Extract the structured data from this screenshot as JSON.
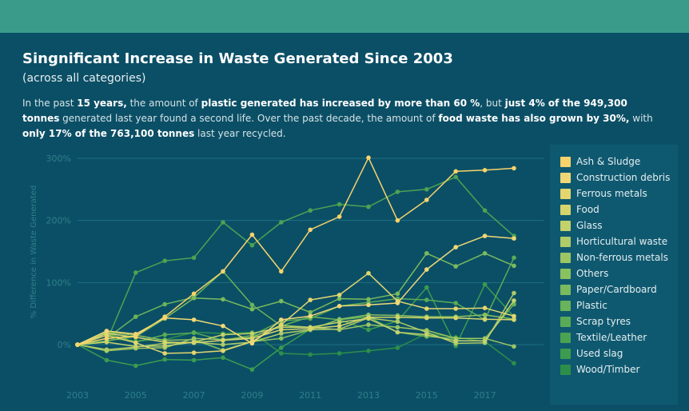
{
  "header": {
    "title": "Singnificant Increase in Waste Generated Since 2003",
    "subtitle": "(across all categories)"
  },
  "description": {
    "l1a": "In the past ",
    "l1b": "15 years,",
    "l1c": " the amount of ",
    "l1d": "plastic generated has increased by more than 60 %",
    "l1e": ", but ",
    "l1f": "just 4% of the 949,300 tonnes",
    "l2a": " generated last year found a second life. Over the past decade, the amount of ",
    "l2b": "food waste has also grown by 30%,",
    "l2c": " with ",
    "l2d": "only 17% of the 763,100 tonnes",
    "l2e": " last year recycled."
  },
  "chart_data": {
    "type": "line",
    "title": "Singnificant Increase in Waste Generated Since 2003",
    "ylabel": "% Difference in Waste Generated",
    "xlabel": "",
    "x": [
      2003,
      2004,
      2005,
      2006,
      2007,
      2008,
      2009,
      2010,
      2011,
      2012,
      2013,
      2014,
      2015,
      2016,
      2017,
      2018
    ],
    "xticks": [
      "2003",
      "2005",
      "2007",
      "2009",
      "2011",
      "2013",
      "2015",
      "2017"
    ],
    "yticks": [
      "300%",
      "200%",
      "100%",
      "0%"
    ],
    "ylim": [
      -50,
      300
    ],
    "grid": true,
    "legend_position": "right",
    "series": [
      {
        "name": "Ash & Sludge",
        "color": "#f6d36b",
        "values": [
          0,
          10,
          14,
          45,
          82,
          118,
          177,
          118,
          185,
          206,
          301,
          200,
          233,
          279,
          281,
          284
        ]
      },
      {
        "name": "Construction debris",
        "color": "#f1d877",
        "values": [
          0,
          22,
          17,
          43,
          40,
          30,
          2,
          40,
          46,
          62,
          64,
          67,
          121,
          157,
          175,
          171
        ]
      },
      {
        "name": "Ferrous metals",
        "color": "#e3d66e",
        "values": [
          0,
          15,
          3,
          -14,
          -13,
          -10,
          5,
          32,
          72,
          80,
          115,
          70,
          58,
          58,
          59,
          46
        ]
      },
      {
        "name": "Food",
        "color": "#d6d56c",
        "values": [
          0,
          18,
          12,
          4,
          3,
          7,
          10,
          24,
          26,
          30,
          44,
          44,
          43,
          43,
          41,
          40
        ]
      },
      {
        "name": "Glass",
        "color": "#c3d26b",
        "values": [
          0,
          4,
          -3,
          -2,
          4,
          16,
          18,
          28,
          28,
          36,
          42,
          20,
          16,
          6,
          6,
          71
        ]
      },
      {
        "name": "Horticultural waste",
        "color": "#aecb67",
        "values": [
          0,
          -8,
          -4,
          2,
          4,
          0,
          4,
          18,
          24,
          25,
          43,
          37,
          20,
          2,
          3,
          83
        ]
      },
      {
        "name": "Non-ferrous metals",
        "color": "#9cc563",
        "values": [
          0,
          -10,
          -6,
          -5,
          10,
          8,
          12,
          31,
          28,
          24,
          32,
          28,
          23,
          10,
          10,
          -3
        ]
      },
      {
        "name": "Others",
        "color": "#8ac160",
        "values": [
          0,
          20,
          15,
          7,
          8,
          -9,
          5,
          10,
          24,
          41,
          48,
          47,
          45,
          45,
          48,
          41
        ]
      },
      {
        "name": "Paper/Cardboard",
        "color": "#79bb5d",
        "values": [
          0,
          6,
          13,
          42,
          75,
          73,
          57,
          70,
          52,
          74,
          73,
          82,
          147,
          126,
          147,
          127
        ]
      },
      {
        "name": "Plastic",
        "color": "#69b35a",
        "values": [
          0,
          10,
          45,
          65,
          76,
          118,
          64,
          30,
          45,
          40,
          45,
          20,
          13,
          10,
          10,
          65
        ]
      },
      {
        "name": "Scrap tyres",
        "color": "#5aab56",
        "values": [
          0,
          18,
          4,
          16,
          19,
          7,
          15,
          38,
          42,
          62,
          68,
          74,
          72,
          67,
          40,
          140
        ]
      },
      {
        "name": "Textile/Leather",
        "color": "#4ba352",
        "values": [
          0,
          5,
          116,
          135,
          140,
          197,
          160,
          197,
          216,
          226,
          222,
          246,
          250,
          270,
          216,
          175
        ]
      },
      {
        "name": "Used slag",
        "color": "#3c9b4f",
        "values": [
          0,
          -25,
          -34,
          -24,
          -25,
          -21,
          -40,
          -5,
          25,
          40,
          24,
          38,
          92,
          -2,
          97,
          45
        ]
      },
      {
        "name": "Wood/Timber",
        "color": "#2d8e49",
        "values": [
          0,
          10,
          6,
          8,
          20,
          18,
          20,
          -14,
          -16,
          -14,
          -10,
          -5,
          18,
          12,
          5,
          -30
        ]
      }
    ]
  }
}
